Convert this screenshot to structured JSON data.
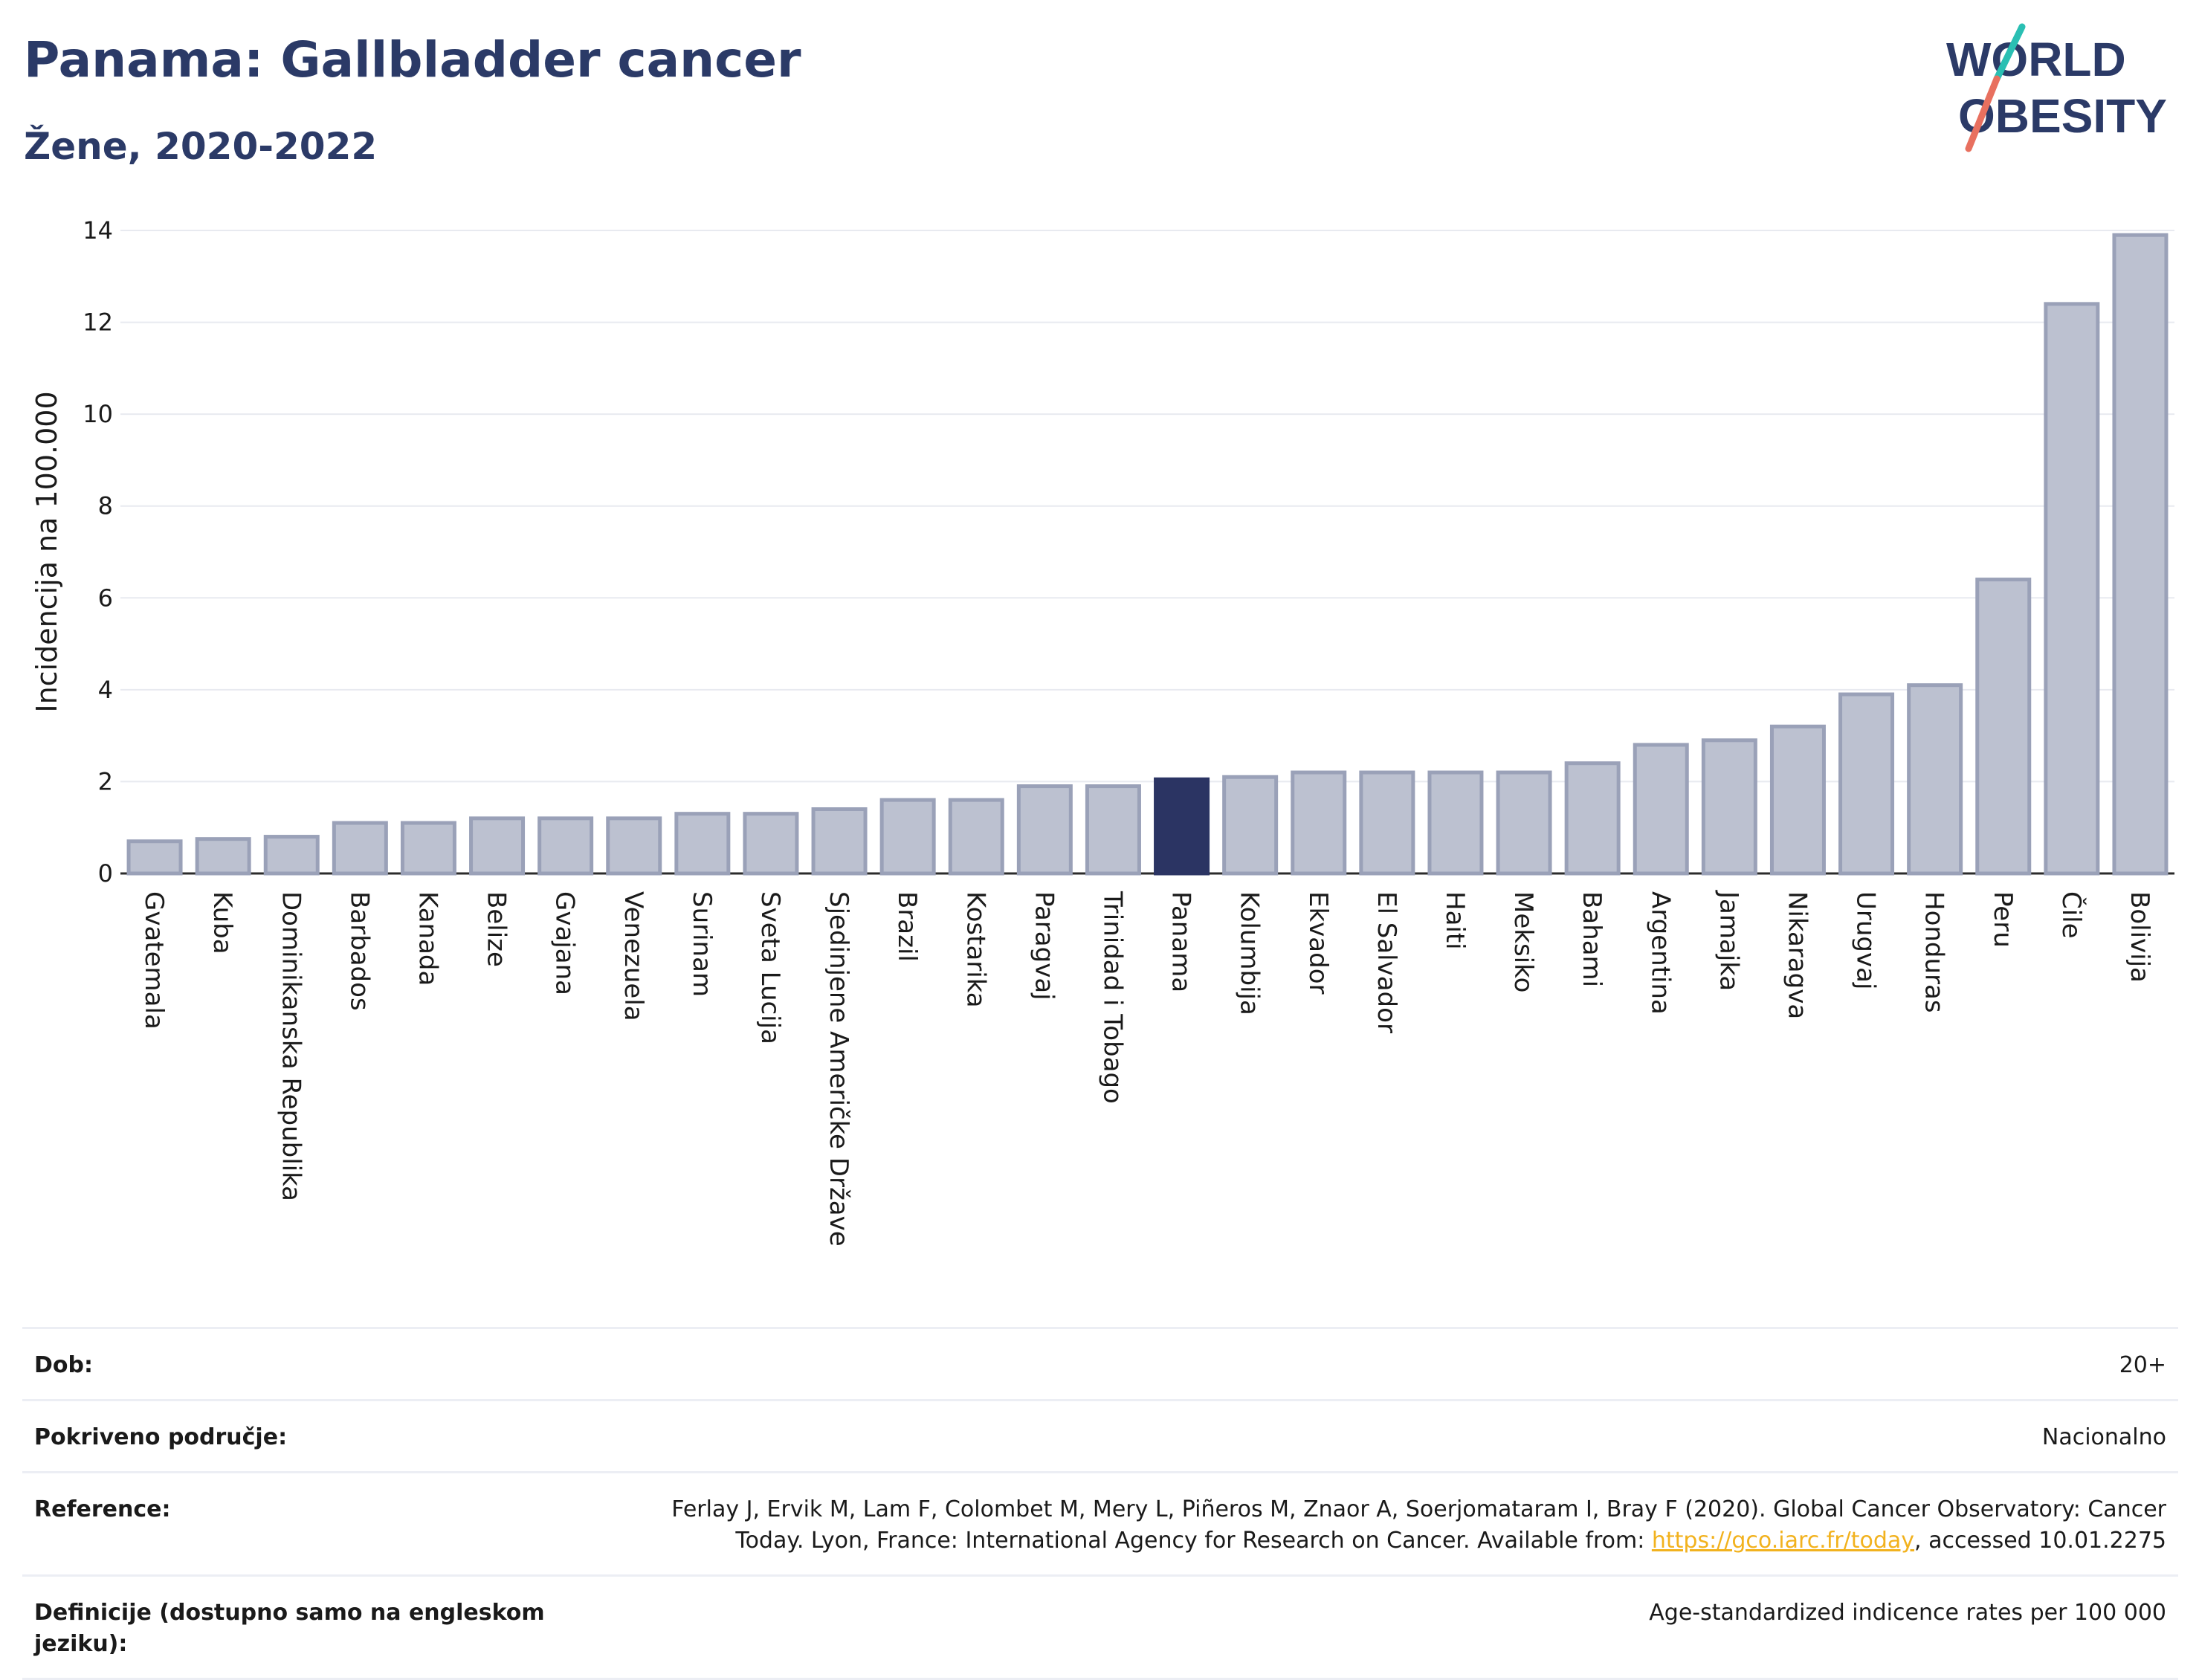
{
  "title": "Panama: Gallbladder cancer",
  "subtitle": "Žene, 2020-2022",
  "logo": {
    "line1": "WORLD",
    "line2": "OBESITY"
  },
  "colors": {
    "highlight": "#2b3463",
    "bar": "#bcc1d0",
    "bar_edge": "#9aa1b8",
    "slash_top": "#2abfb3",
    "slash_bottom": "#e8705f",
    "link": "#f2b21e"
  },
  "chart_data": {
    "type": "bar",
    "title": "Panama: Gallbladder cancer",
    "subtitle": "Žene, 2020-2022",
    "ylabel": "Incidencija na 100.000",
    "xlabel": "",
    "ylim": [
      0,
      14
    ],
    "yticks": [
      0,
      2,
      4,
      6,
      8,
      10,
      12,
      14
    ],
    "highlight": "Panama",
    "grid": true,
    "categories": [
      "Gvatemala",
      "Kuba",
      "Dominikanska Republika",
      "Barbados",
      "Kanada",
      "Belize",
      "Gvajana",
      "Venezuela",
      "Surinam",
      "Sveta Lucija",
      "Sjedinjene Američke Države",
      "Brazil",
      "Kostarika",
      "Paragvaj",
      "Trinidad i Tobago",
      "Panama",
      "Kolumbija",
      "Ekvador",
      "El Salvador",
      "Haiti",
      "Meksiko",
      "Bahami",
      "Argentina",
      "Jamajka",
      "Nikaragva",
      "Urugvaj",
      "Honduras",
      "Peru",
      "Čile",
      "Bolivija"
    ],
    "values": [
      0.7,
      0.75,
      0.8,
      1.1,
      1.1,
      1.2,
      1.2,
      1.2,
      1.3,
      1.3,
      1.4,
      1.6,
      1.6,
      1.9,
      1.9,
      2.05,
      2.1,
      2.2,
      2.2,
      2.2,
      2.2,
      2.4,
      2.8,
      2.9,
      3.2,
      3.9,
      4.1,
      6.4,
      12.4,
      13.9
    ]
  },
  "meta": {
    "dob_label": "Dob:",
    "dob_value": "20+",
    "coverage_label": "Pokriveno područje:",
    "coverage_value": "Nacionalno",
    "reference_label": "Reference:",
    "reference_text": "Ferlay J, Ervik M, Lam F, Colombet M, Mery L, Piñeros M, Znaor A, Soerjomataram I, Bray F (2020). Global Cancer Observatory: Cancer Today. Lyon, France: International Agency for Research on Cancer. Available from: ",
    "reference_link": "https://gco.iarc.fr/today",
    "reference_tail": ", accessed 10.01.2275",
    "definition_label": "Definicije (dostupno samo na engleskom jeziku):",
    "definition_value": "Age-standardized indicence rates per 100 000"
  }
}
